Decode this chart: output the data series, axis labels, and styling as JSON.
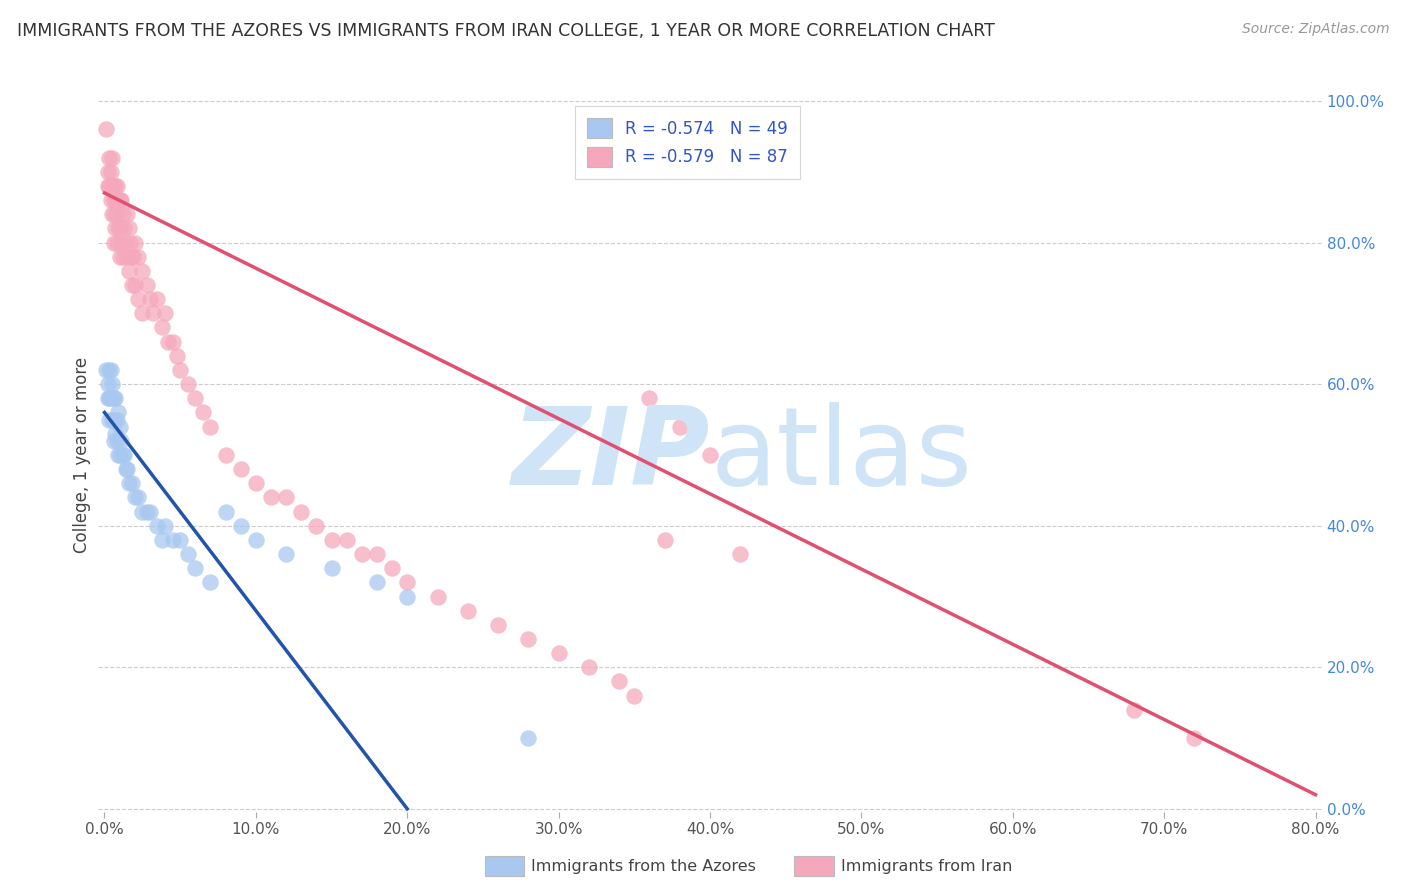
{
  "title": "IMMIGRANTS FROM THE AZORES VS IMMIGRANTS FROM IRAN COLLEGE, 1 YEAR OR MORE CORRELATION CHART",
  "source": "Source: ZipAtlas.com",
  "ylabel": "College, 1 year or more",
  "legend_label_blue": "Immigrants from the Azores",
  "legend_label_pink": "Immigrants from Iran",
  "R_blue": -0.574,
  "N_blue": 49,
  "R_pink": -0.579,
  "N_pink": 87,
  "color_blue": "#A8C8F0",
  "color_pink": "#F5A8BC",
  "line_color_blue": "#2255AA",
  "line_color_pink": "#E05070",
  "text_color_legend": "#3355CC",
  "xlim": [
    -0.004,
    0.804
  ],
  "ylim": [
    -0.004,
    1.004
  ],
  "xticks": [
    0.0,
    0.1,
    0.2,
    0.3,
    0.4,
    0.5,
    0.6,
    0.7,
    0.8
  ],
  "yticks": [
    0.0,
    0.2,
    0.4,
    0.6,
    0.8,
    1.0
  ],
  "xtick_labels": [
    "0.0%",
    "10.0%",
    "20.0%",
    "30.0%",
    "40.0%",
    "50.0%",
    "60.0%",
    "70.0%",
    "80.0%"
  ],
  "ytick_labels_right": [
    "0.0%",
    "20.0%",
    "40.0%",
    "60.0%",
    "80.0%",
    "100.0%"
  ],
  "blue_x": [
    0.001,
    0.002,
    0.002,
    0.003,
    0.003,
    0.003,
    0.004,
    0.004,
    0.005,
    0.005,
    0.006,
    0.006,
    0.006,
    0.007,
    0.007,
    0.008,
    0.008,
    0.009,
    0.009,
    0.01,
    0.01,
    0.011,
    0.012,
    0.013,
    0.014,
    0.015,
    0.016,
    0.018,
    0.02,
    0.022,
    0.025,
    0.028,
    0.03,
    0.035,
    0.038,
    0.04,
    0.045,
    0.05,
    0.055,
    0.06,
    0.07,
    0.08,
    0.09,
    0.1,
    0.12,
    0.15,
    0.18,
    0.2,
    0.28
  ],
  "blue_y": [
    0.62,
    0.6,
    0.58,
    0.62,
    0.58,
    0.55,
    0.62,
    0.58,
    0.6,
    0.55,
    0.58,
    0.55,
    0.52,
    0.58,
    0.53,
    0.55,
    0.52,
    0.56,
    0.5,
    0.54,
    0.5,
    0.52,
    0.5,
    0.5,
    0.48,
    0.48,
    0.46,
    0.46,
    0.44,
    0.44,
    0.42,
    0.42,
    0.42,
    0.4,
    0.38,
    0.4,
    0.38,
    0.38,
    0.36,
    0.34,
    0.32,
    0.42,
    0.4,
    0.38,
    0.36,
    0.34,
    0.32,
    0.3,
    0.1
  ],
  "pink_x": [
    0.001,
    0.002,
    0.002,
    0.003,
    0.003,
    0.004,
    0.004,
    0.005,
    0.005,
    0.005,
    0.006,
    0.006,
    0.006,
    0.006,
    0.007,
    0.007,
    0.007,
    0.008,
    0.008,
    0.008,
    0.009,
    0.009,
    0.01,
    0.01,
    0.01,
    0.011,
    0.011,
    0.012,
    0.012,
    0.013,
    0.014,
    0.015,
    0.015,
    0.016,
    0.016,
    0.017,
    0.018,
    0.018,
    0.019,
    0.02,
    0.02,
    0.022,
    0.022,
    0.025,
    0.025,
    0.028,
    0.03,
    0.032,
    0.035,
    0.038,
    0.04,
    0.042,
    0.045,
    0.048,
    0.05,
    0.055,
    0.06,
    0.065,
    0.07,
    0.08,
    0.09,
    0.1,
    0.11,
    0.12,
    0.13,
    0.14,
    0.15,
    0.16,
    0.17,
    0.18,
    0.19,
    0.2,
    0.22,
    0.24,
    0.26,
    0.28,
    0.3,
    0.32,
    0.34,
    0.35,
    0.36,
    0.38,
    0.4,
    0.37,
    0.42,
    0.68,
    0.72
  ],
  "pink_y": [
    0.96,
    0.9,
    0.88,
    0.92,
    0.88,
    0.9,
    0.86,
    0.92,
    0.88,
    0.84,
    0.88,
    0.86,
    0.84,
    0.8,
    0.88,
    0.86,
    0.82,
    0.88,
    0.84,
    0.8,
    0.86,
    0.82,
    0.86,
    0.82,
    0.78,
    0.86,
    0.8,
    0.84,
    0.78,
    0.82,
    0.8,
    0.84,
    0.78,
    0.82,
    0.76,
    0.8,
    0.78,
    0.74,
    0.78,
    0.8,
    0.74,
    0.78,
    0.72,
    0.76,
    0.7,
    0.74,
    0.72,
    0.7,
    0.72,
    0.68,
    0.7,
    0.66,
    0.66,
    0.64,
    0.62,
    0.6,
    0.58,
    0.56,
    0.54,
    0.5,
    0.48,
    0.46,
    0.44,
    0.44,
    0.42,
    0.4,
    0.38,
    0.38,
    0.36,
    0.36,
    0.34,
    0.32,
    0.3,
    0.28,
    0.26,
    0.24,
    0.22,
    0.2,
    0.18,
    0.16,
    0.58,
    0.54,
    0.5,
    0.38,
    0.36,
    0.14,
    0.1
  ],
  "blue_line_x0": 0.0,
  "blue_line_x1": 0.2,
  "blue_line_y0": 0.56,
  "blue_line_y1": 0.0,
  "pink_line_x0": 0.0,
  "pink_line_x1": 0.8,
  "pink_line_y0": 0.87,
  "pink_line_y1": 0.02
}
